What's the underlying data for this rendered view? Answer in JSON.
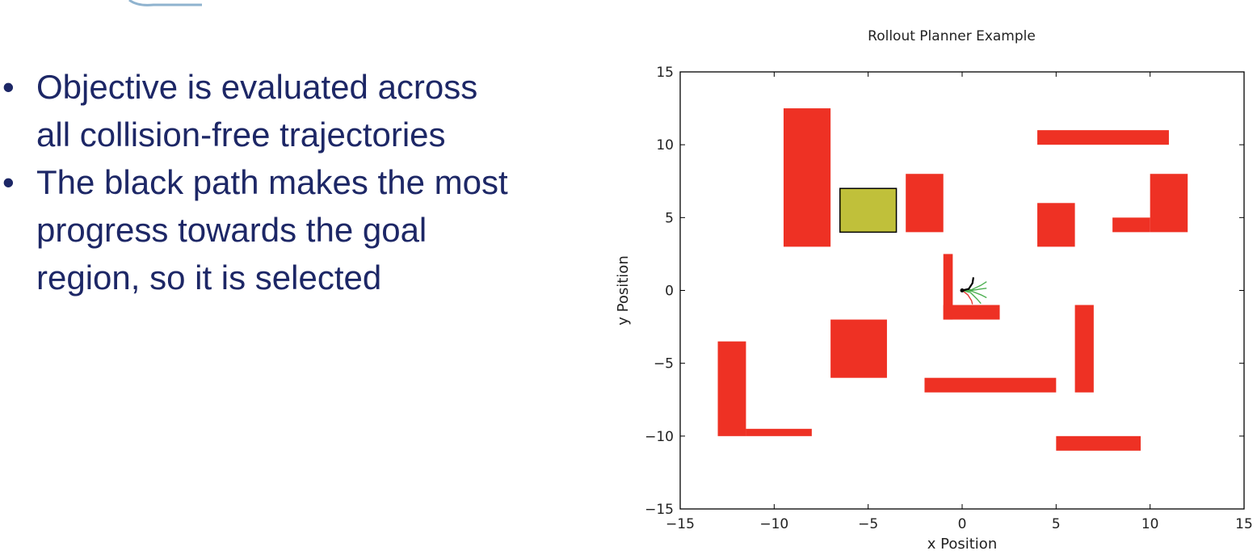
{
  "colors": {
    "bullet_text": "#1d2766",
    "obstacle": "#ee3124",
    "goal": "#c0c03a",
    "axis": "#000000"
  },
  "slide": {
    "bullets": [
      {
        "lines": [
          "Objective is evaluated across",
          "all collision-free trajectories"
        ]
      },
      {
        "lines": [
          "The black path makes the most",
          "progress towards the goal",
          "region, so it is selected"
        ]
      }
    ]
  },
  "chart_data": {
    "type": "scatter",
    "title": "Rollout Planner Example",
    "xlabel": "x Position",
    "ylabel": "y Position",
    "xlim": [
      -15,
      15
    ],
    "ylim": [
      -15,
      15
    ],
    "xticks": [
      -15,
      -10,
      -5,
      0,
      5,
      10,
      15
    ],
    "yticks": [
      -15,
      -10,
      -5,
      0,
      5,
      10,
      15
    ],
    "xtick_labels": [
      "−15",
      "−10",
      "−5",
      "0",
      "5",
      "10",
      "15"
    ],
    "ytick_labels": [
      "−15",
      "−10",
      "−5",
      "0",
      "5",
      "10",
      "15"
    ],
    "grid": false,
    "obstacles": [
      {
        "x": [
          -9.5,
          -7
        ],
        "y": [
          3,
          12.5
        ]
      },
      {
        "x": [
          -3,
          -1
        ],
        "y": [
          4,
          8
        ]
      },
      {
        "x": [
          4,
          11
        ],
        "y": [
          10,
          11
        ]
      },
      {
        "x": [
          4,
          6
        ],
        "y": [
          3,
          6
        ]
      },
      {
        "x": [
          10,
          12
        ],
        "y": [
          4,
          8
        ]
      },
      {
        "x": [
          8,
          10
        ],
        "y": [
          4,
          5
        ]
      },
      {
        "x": [
          -1,
          -0.5
        ],
        "y": [
          -2,
          2.5
        ]
      },
      {
        "x": [
          -1,
          2
        ],
        "y": [
          -2,
          -1
        ]
      },
      {
        "x": [
          -7,
          -4
        ],
        "y": [
          -6,
          -2
        ]
      },
      {
        "x": [
          -2,
          5
        ],
        "y": [
          -7,
          -6
        ]
      },
      {
        "x": [
          6,
          7
        ],
        "y": [
          -7,
          -1
        ]
      },
      {
        "x": [
          -13,
          -11.5
        ],
        "y": [
          -10,
          -3.5
        ]
      },
      {
        "x": [
          -11.5,
          -8
        ],
        "y": [
          -10,
          -9.5
        ]
      },
      {
        "x": [
          5,
          9.5
        ],
        "y": [
          -11,
          -10
        ]
      }
    ],
    "goal_region": {
      "x": [
        -6.5,
        -3.5
      ],
      "y": [
        4,
        7
      ]
    },
    "start": {
      "x": 0,
      "y": 0
    },
    "trajectories": [
      {
        "kind": "candidate",
        "color": "#4caf50",
        "points": [
          [
            0,
            0
          ],
          [
            0.5,
            0.05
          ],
          [
            1,
            0.35
          ],
          [
            1.3,
            0.6
          ]
        ]
      },
      {
        "kind": "candidate",
        "color": "#4caf50",
        "points": [
          [
            0,
            0
          ],
          [
            0.5,
            0
          ],
          [
            1,
            0.1
          ],
          [
            1.3,
            0.15
          ]
        ]
      },
      {
        "kind": "candidate",
        "color": "#4caf50",
        "points": [
          [
            0,
            0
          ],
          [
            0.5,
            -0.05
          ],
          [
            1,
            -0.3
          ],
          [
            1.3,
            -0.5
          ]
        ]
      },
      {
        "kind": "candidate",
        "color": "#4caf50",
        "points": [
          [
            0,
            0
          ],
          [
            0.45,
            -0.15
          ],
          [
            0.8,
            -0.6
          ],
          [
            1,
            -0.9
          ]
        ]
      },
      {
        "kind": "collision",
        "color": "#e53935",
        "points": [
          [
            0,
            0
          ],
          [
            0.3,
            -0.3
          ],
          [
            0.5,
            -0.7
          ],
          [
            0.55,
            -0.95
          ]
        ]
      },
      {
        "kind": "selected",
        "color": "#000000",
        "points": [
          [
            0,
            0
          ],
          [
            0.35,
            0.1
          ],
          [
            0.55,
            0.5
          ],
          [
            0.6,
            0.9
          ]
        ]
      }
    ]
  }
}
